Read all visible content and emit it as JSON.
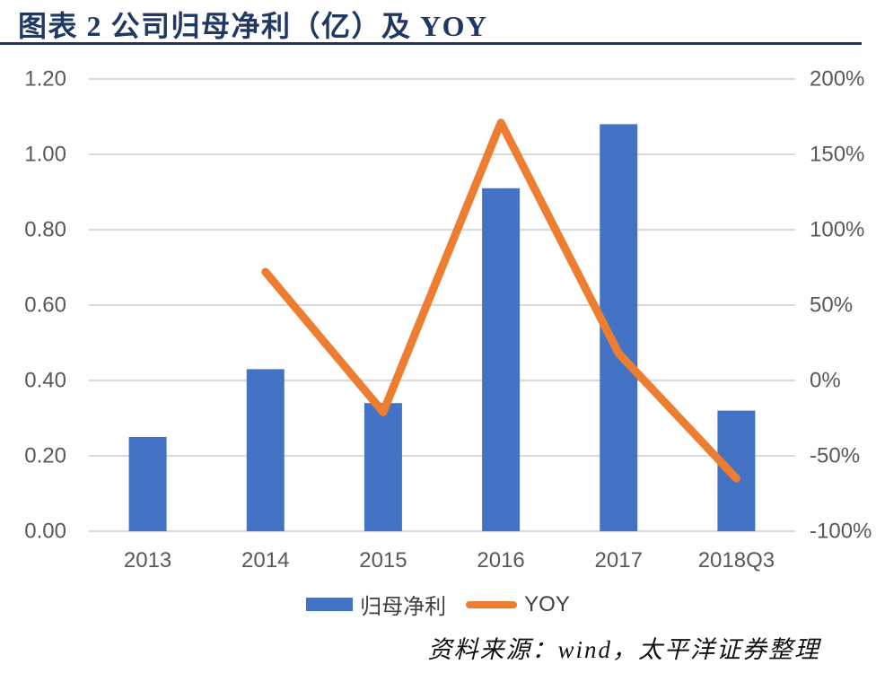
{
  "header": {
    "title": "图表 2 公司归母净利（亿）及 YOY"
  },
  "source_note": "资料来源：wind，太平洋证券整理",
  "colors": {
    "title": "#1F3864",
    "rule": "#1F3864",
    "bar": "#4472C4",
    "line": "#ED7D31",
    "axis_text": "#595959",
    "gridline": "#D9D9D9",
    "legend_text": "#404040"
  },
  "chart_data": {
    "type": "bar+line combo",
    "title": "图表 2 公司归母净利（亿）及 YOY",
    "categories": [
      "2013",
      "2014",
      "2015",
      "2016",
      "2017",
      "2018Q3"
    ],
    "series": [
      {
        "name": "归母净利",
        "type": "bar",
        "axis": "left",
        "color": "#4472C4",
        "values": [
          0.25,
          0.43,
          0.34,
          0.91,
          1.08,
          0.32
        ]
      },
      {
        "name": "YOY",
        "type": "line",
        "axis": "right",
        "unit": "%",
        "color": "#ED7D31",
        "values": [
          null,
          72,
          -21,
          171,
          18,
          -65
        ]
      }
    ],
    "left_axis": {
      "min": 0,
      "max": 1.2,
      "step": 0.2,
      "ticks": [
        "1.20",
        "1.00",
        "0.80",
        "0.60",
        "0.40",
        "0.20",
        "0.00"
      ]
    },
    "right_axis": {
      "min_pct": -100,
      "max_pct": 200,
      "step_pct": 50,
      "ticks": [
        "200%",
        "150%",
        "100%",
        "50%",
        "0%",
        "-50%",
        "-100%"
      ]
    },
    "grid": true,
    "legend_position": "bottom"
  }
}
